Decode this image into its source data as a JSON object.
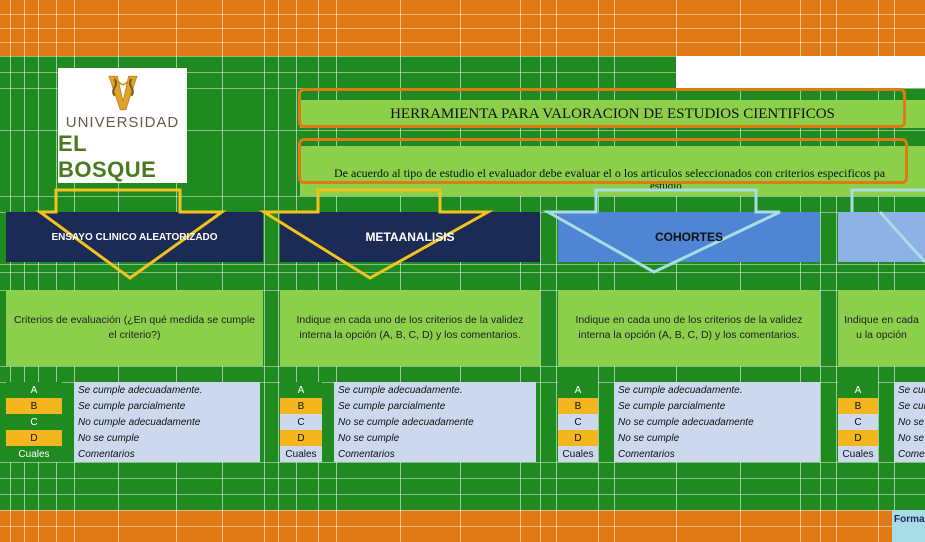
{
  "logo": {
    "line1": "UNIVERSIDAD",
    "line2": "EL BOSQUE"
  },
  "title": "HERRAMIENTA PARA VALORACION DE ESTUDIOS CIENTIFICOS",
  "subtitle": {
    "line1": "De acuerdo al tipo de estudio el evaluador debe evaluar el o los articulos seleccionados con criterios especificos pa",
    "line2": "estudio"
  },
  "columns": [
    {
      "header": "ENSAYO CLINICO ALEATORIZADO",
      "criteria": "Criterios de evaluación (¿En qué medida se cumple el criterio?)",
      "legend": [
        {
          "code": "A",
          "text": "Se cumple adecuadamente."
        },
        {
          "code": "B",
          "text": "Se cumple parcialmente"
        },
        {
          "code": "C",
          "text": "No cumple adecuadamente"
        },
        {
          "code": "D",
          "text": "No se cumple"
        },
        {
          "code": "Cuales",
          "text": "Comentarios"
        }
      ]
    },
    {
      "header": "METAANALISIS",
      "criteria": "Indique en cada uno de los criterios de la validez interna la opción  (A, B, C, D) y los comentarios.",
      "legend": [
        {
          "code": "A",
          "text": "Se cumple adecuadamente."
        },
        {
          "code": "B",
          "text": "Se cumple parcialmente"
        },
        {
          "code": "C",
          "text": "No se cumple adecuadamente"
        },
        {
          "code": "D",
          "text": "No se cumple"
        },
        {
          "code": "Cuales",
          "text": "Comentarios"
        }
      ]
    },
    {
      "header": "COHORTES",
      "criteria": "Indique en cada uno de los criterios de la validez interna la opción  (A, B, C, D) y los comentarios.",
      "legend": [
        {
          "code": "A",
          "text": "Se cumple adecuadamente."
        },
        {
          "code": "B",
          "text": "Se cumple parcialmente"
        },
        {
          "code": "C",
          "text": "No se cumple adecuadamente"
        },
        {
          "code": "D",
          "text": "No se cumple"
        },
        {
          "code": "Cuales",
          "text": "Comentarios"
        }
      ]
    },
    {
      "header": "",
      "criteria": "Indique en cada u la opción",
      "legend": [
        {
          "code": "A",
          "text": "Se cum"
        },
        {
          "code": "B",
          "text": "Se cum"
        },
        {
          "code": "C",
          "text": "No se c"
        },
        {
          "code": "D",
          "text": "No se c"
        },
        {
          "code": "Cuales",
          "text": "Comer"
        }
      ]
    }
  ],
  "footer_cell": "Forma",
  "colors": {
    "orange": "#e07a14",
    "green": "#1f8a1f",
    "light_green": "#8bcf4a",
    "navy": "#1b2b55",
    "blue": "#4e86d4",
    "light_blue": "#cbd8ee",
    "yellow": "#f4b61c"
  }
}
